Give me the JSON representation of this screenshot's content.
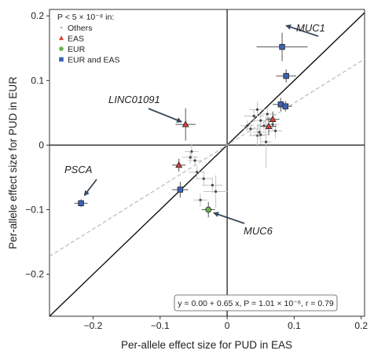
{
  "chart_data": {
    "type": "scatter",
    "xlabel": "Per-allele effect size for PUD in EAS",
    "ylabel": "Per-allele effect size for PUD in EUR",
    "xlim": [
      -0.265,
      0.205
    ],
    "ylim": [
      -0.265,
      0.21
    ],
    "xticks": [
      -0.2,
      -0.1,
      0,
      0.1,
      0.2
    ],
    "xtick_labels": [
      "−0.2",
      "−0.1",
      "0",
      "0.1",
      "0.2"
    ],
    "yticks": [
      -0.2,
      -0.1,
      0,
      0.1,
      0.2
    ],
    "ytick_labels": [
      "−0.2",
      "−0.1",
      "0",
      "0.1",
      "0.2"
    ],
    "legend": {
      "title": "P < 5 × 10⁻⁸ in:",
      "placement": "top-left",
      "items": [
        {
          "label": "Others",
          "marker": "dot",
          "color": "#b0b0b0"
        },
        {
          "label": "EAS",
          "marker": "triangle",
          "color": "#d9403a"
        },
        {
          "label": "EUR",
          "marker": "circle",
          "color": "#6ab04c"
        },
        {
          "label": "EUR and EAS",
          "marker": "square",
          "color": "#3b63b7"
        }
      ]
    },
    "reference_lines": {
      "identity": "y = x",
      "fit": {
        "intercept": 0.0,
        "slope": 0.65,
        "style": "dashed"
      }
    },
    "regression_text": "y = 0.00 + 0.65 x, P = 1.01 × 10⁻⁶, r = 0.79",
    "points": [
      {
        "group": "EUR and EAS",
        "x": 0.082,
        "y": 0.152,
        "xerr": 0.038,
        "yerr": 0.022,
        "gene": "MUC1"
      },
      {
        "group": "EUR and EAS",
        "x": 0.088,
        "y": 0.107,
        "xerr": 0.015,
        "yerr": 0.01
      },
      {
        "group": "EUR and EAS",
        "x": 0.08,
        "y": 0.063,
        "xerr": 0.012,
        "yerr": 0.01
      },
      {
        "group": "EUR and EAS",
        "x": 0.087,
        "y": 0.06,
        "xerr": 0.01,
        "yerr": 0.008
      },
      {
        "group": "EUR and EAS",
        "x": -0.218,
        "y": -0.09,
        "xerr": 0.01,
        "yerr": 0.006,
        "gene": "PSCA"
      },
      {
        "group": "EUR and EAS",
        "x": -0.07,
        "y": -0.069,
        "xerr": 0.012,
        "yerr": 0.012
      },
      {
        "group": "EAS",
        "x": -0.062,
        "y": 0.032,
        "xerr": 0.015,
        "yerr": 0.025,
        "gene": "LINC01091"
      },
      {
        "group": "EAS",
        "x": -0.072,
        "y": -0.031,
        "xerr": 0.01,
        "yerr": 0.01
      },
      {
        "group": "EAS",
        "x": 0.062,
        "y": 0.029,
        "xerr": 0.012,
        "yerr": 0.014
      },
      {
        "group": "EAS",
        "x": 0.068,
        "y": 0.04,
        "xerr": 0.01,
        "yerr": 0.012
      },
      {
        "group": "EUR",
        "x": -0.028,
        "y": -0.1,
        "xerr": 0.01,
        "yerr": 0.012,
        "gene": "MUC6"
      },
      {
        "group": "Others",
        "x": -0.053,
        "y": -0.01,
        "xerr": 0.01,
        "yerr": 0.012
      },
      {
        "group": "Others",
        "x": -0.055,
        "y": -0.019,
        "xerr": 0.012,
        "yerr": 0.01
      },
      {
        "group": "Others",
        "x": -0.048,
        "y": -0.024,
        "xerr": 0.01,
        "yerr": 0.008
      },
      {
        "group": "Others",
        "x": -0.045,
        "y": -0.042,
        "xerr": 0.012,
        "yerr": 0.01
      },
      {
        "group": "Others",
        "x": -0.035,
        "y": -0.052,
        "xerr": 0.012,
        "yerr": 0.01
      },
      {
        "group": "Others",
        "x": -0.022,
        "y": -0.062,
        "xerr": 0.015,
        "yerr": 0.012
      },
      {
        "group": "Others",
        "x": -0.017,
        "y": -0.072,
        "xerr": 0.018,
        "yerr": 0.025
      },
      {
        "group": "Others",
        "x": -0.04,
        "y": -0.085,
        "xerr": 0.01,
        "yerr": 0.01
      },
      {
        "group": "Others",
        "x": 0.04,
        "y": 0.045,
        "xerr": 0.015,
        "yerr": 0.01
      },
      {
        "group": "Others",
        "x": 0.045,
        "y": 0.055,
        "xerr": 0.012,
        "yerr": 0.012
      },
      {
        "group": "Others",
        "x": 0.05,
        "y": 0.038,
        "xerr": 0.012,
        "yerr": 0.01
      },
      {
        "group": "Others",
        "x": 0.055,
        "y": 0.03,
        "xerr": 0.01,
        "yerr": 0.008
      },
      {
        "group": "Others",
        "x": 0.035,
        "y": 0.025,
        "xerr": 0.012,
        "yerr": 0.012
      },
      {
        "group": "Others",
        "x": 0.048,
        "y": 0.02,
        "xerr": 0.01,
        "yerr": 0.01
      },
      {
        "group": "Others",
        "x": 0.06,
        "y": 0.048,
        "xerr": 0.012,
        "yerr": 0.01
      },
      {
        "group": "Others",
        "x": 0.045,
        "y": 0.015,
        "xerr": 0.012,
        "yerr": 0.018
      },
      {
        "group": "Others",
        "x": 0.058,
        "y": 0.005,
        "xerr": 0.008,
        "yerr": 0.04
      },
      {
        "group": "Others",
        "x": 0.068,
        "y": 0.032,
        "xerr": 0.01,
        "yerr": 0.01
      },
      {
        "group": "Others",
        "x": 0.03,
        "y": 0.03,
        "xerr": 0.01,
        "yerr": 0.008
      },
      {
        "group": "Others",
        "x": 0.072,
        "y": 0.022,
        "xerr": 0.01,
        "yerr": 0.012
      },
      {
        "group": "Others",
        "x": 0.05,
        "y": 0.016,
        "xerr": 0.01,
        "yerr": 0.015
      }
    ],
    "annotations": [
      {
        "text": "MUC1",
        "arrow_to": [
          0.088,
          0.185
        ]
      },
      {
        "text": "LINC01091",
        "arrow_to": [
          -0.068,
          0.036
        ]
      },
      {
        "text": "PSCA",
        "arrow_to": [
          -0.213,
          -0.078
        ]
      },
      {
        "text": "MUC6",
        "arrow_to": [
          -0.02,
          -0.105
        ]
      }
    ],
    "group_colors": {
      "Others": "#b8b8b8",
      "EAS": "#d9403a",
      "EUR": "#6ab04c",
      "EUR and EAS": "#3b63b7"
    }
  }
}
